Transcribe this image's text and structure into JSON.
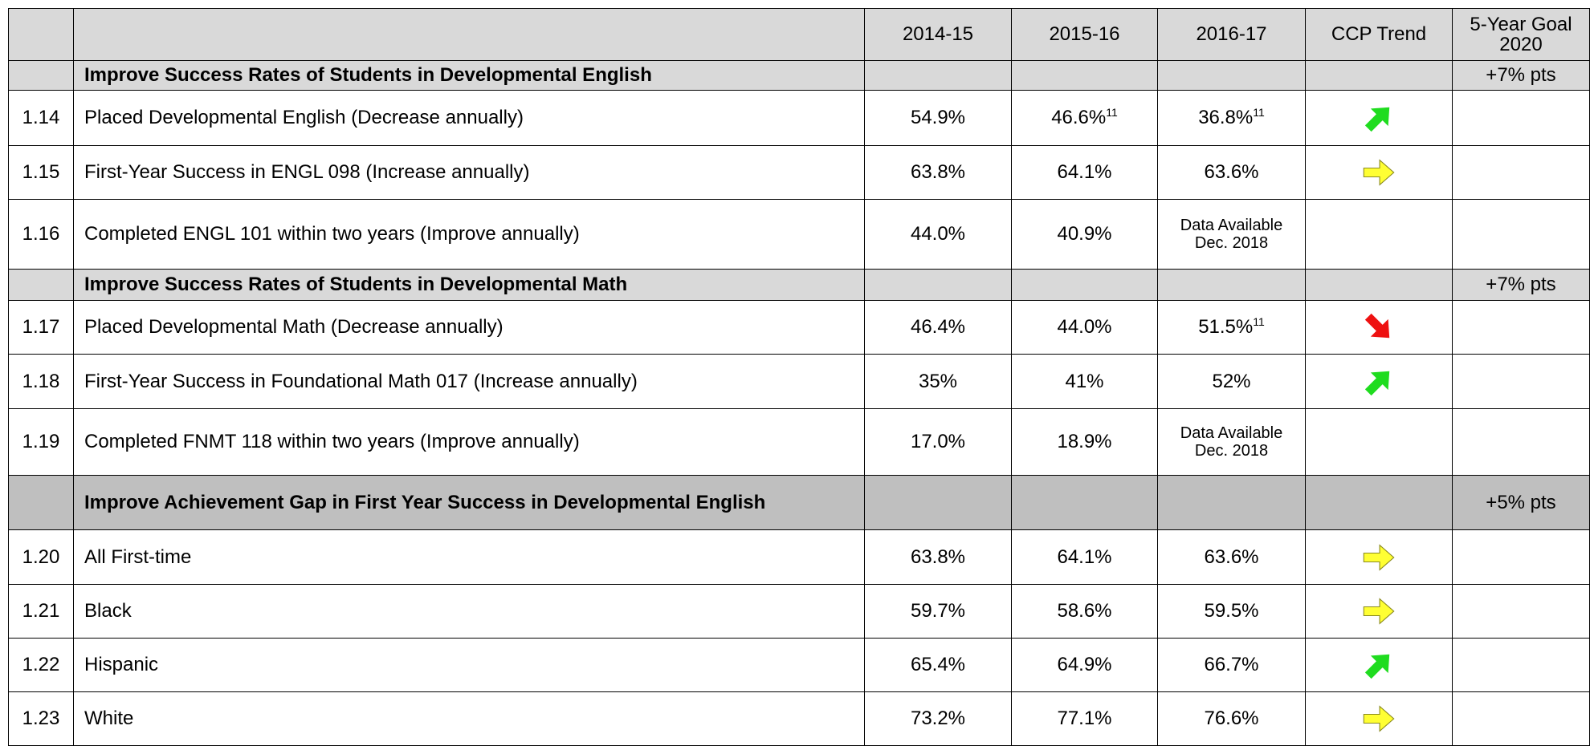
{
  "header": [
    "2014-15",
    "2015-16",
    "2016-17",
    "CCP Trend",
    "5-Year Goal 2020"
  ],
  "sections": [
    {
      "title": "Improve Success Rates of Students in Developmental English",
      "goal": "+7% pts",
      "color": "#d9d9d9",
      "rows": [
        {
          "id": "1.14",
          "label": "Placed Developmental English (Decrease annually)",
          "values": [
            "54.9%",
            "46.6%",
            "36.8%"
          ],
          "notes": [
            null,
            "11",
            "11"
          ],
          "trend": "up"
        },
        {
          "id": "1.15",
          "label": "First-Year Success in ENGL 098 (Increase annually)",
          "values": [
            "63.8%",
            "64.1%",
            "63.6%"
          ],
          "trend": "flat"
        },
        {
          "id": "1.16",
          "label": "Completed ENGL 101 within two years (Improve annually)",
          "values": [
            "44.0%",
            "40.9%",
            "Data Available Dec. 2018"
          ]
        }
      ]
    },
    {
      "title": "Improve Success Rates of Students in Developmental Math",
      "goal": "+7% pts",
      "color": "#d9d9d9",
      "rows": [
        {
          "id": "1.17",
          "label": "Placed Developmental Math (Decrease annually)",
          "values": [
            "46.4%",
            "44.0%",
            "51.5%"
          ],
          "notes": [
            null,
            null,
            "11"
          ],
          "trend": "down"
        },
        {
          "id": "1.18",
          "label": "First-Year Success in Foundational Math 017 (Increase annually)",
          "values": [
            "35%",
            "41%",
            "52%"
          ],
          "trend": "up"
        },
        {
          "id": "1.19",
          "label": "Completed FNMT 118 within two years (Improve annually)",
          "values": [
            "17.0%",
            "18.9%",
            "Data Available Dec. 2018"
          ]
        }
      ]
    },
    {
      "title": "Improve Achievement Gap in First Year Success in Developmental English",
      "goal": "+5% pts",
      "color": "#bfbfbf",
      "rows": [
        {
          "id": "1.20",
          "label": "All First-time",
          "values": [
            "63.8%",
            "64.1%",
            "63.6%"
          ],
          "trend": "flat"
        },
        {
          "id": "1.21",
          "label": "Black",
          "values": [
            "59.7%",
            "58.6%",
            "59.5%"
          ],
          "trend": "flat"
        },
        {
          "id": "1.22",
          "label": "Hispanic",
          "values": [
            "65.4%",
            "64.9%",
            "66.7%"
          ],
          "trend": "up"
        },
        {
          "id": "1.23",
          "label": "White",
          "values": [
            "73.2%",
            "77.1%",
            "76.6%"
          ],
          "trend": "flat"
        }
      ]
    }
  ]
}
